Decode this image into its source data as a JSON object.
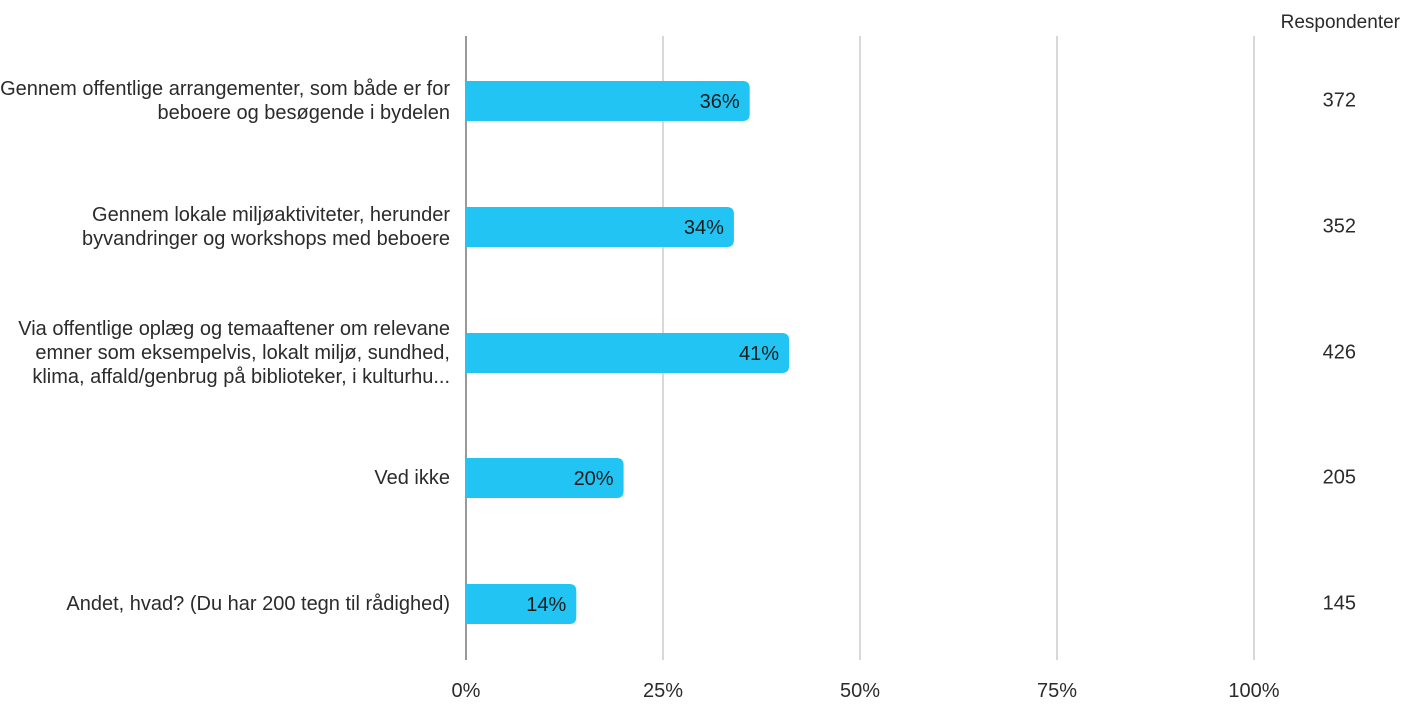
{
  "colors": {
    "bar": "#21c4f3",
    "grid": "#bdbdbd",
    "axis": "#9a9a9a",
    "text": "#2b2b2b"
  },
  "respondents_header": "Respondenter",
  "chart_data": {
    "type": "bar",
    "orientation": "horizontal",
    "categories": [
      [
        "Gennem offentlige arrangementer, som både er for",
        "beboere og besøgende i bydelen"
      ],
      [
        "Gennem lokale miljøaktiviteter, herunder",
        "byvandringer og workshops med beboere"
      ],
      [
        "Via offentlige oplæg og temaaftener om relevane",
        "emner som eksempelvis, lokalt miljø, sundhed,",
        "klima, affald/genbrug på biblioteker, i kulturhu..."
      ],
      [
        "Ved ikke"
      ],
      [
        "Andet, hvad? (Du har 200 tegn til rådighed)"
      ]
    ],
    "values": [
      36,
      34,
      41,
      20,
      14
    ],
    "value_labels": [
      "36%",
      "34%",
      "41%",
      "20%",
      "14%"
    ],
    "respondents": [
      "372",
      "352",
      "426",
      "205",
      "145"
    ],
    "xlim": [
      0,
      100
    ],
    "xticks": [
      0,
      25,
      50,
      75,
      100
    ],
    "xtick_labels": [
      "0%",
      "25%",
      "50%",
      "75%",
      "100%"
    ],
    "grid": true
  }
}
